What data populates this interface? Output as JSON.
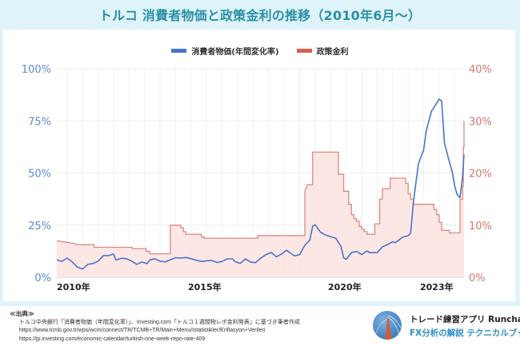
{
  "title": "トルコ 消費者物価と政策金利の推移（2010年6月〜）",
  "colors": {
    "cpi_line": "#4a74c9",
    "rate_line": "#d98a80",
    "rate_fill": "#fbe3df",
    "left_axis_text": "#5b8ad1",
    "right_axis_text": "#d9776b",
    "title": "#2a8fa8",
    "background": "#dff4fa"
  },
  "chart_data": {
    "type": "line",
    "title": "トルコ 消費者物価と政策金利の推移（2010年6月〜）",
    "legend": {
      "position": "top-center",
      "entries": [
        {
          "label": "消費者物価(年間変化率)",
          "color": "#4a74c9",
          "axis": "left"
        },
        {
          "label": "政策金利",
          "color": "#d98a80",
          "axis": "right"
        }
      ]
    },
    "x_axis": {
      "range": [
        2010.42,
        2023.55
      ],
      "tick_labels": [
        {
          "value": 2010.42,
          "label": "2010年"
        },
        {
          "value": 2015,
          "label": "2015年"
        },
        {
          "value": 2020,
          "label": "2020年"
        },
        {
          "value": 2023,
          "label": "2023年"
        }
      ]
    },
    "y_left": {
      "range": [
        0,
        100
      ],
      "ticks": [
        0,
        25,
        50,
        75,
        100
      ],
      "tick_labels": [
        "0%",
        "25%",
        "50%",
        "75%",
        "100%"
      ]
    },
    "y_right": {
      "range": [
        0,
        40
      ],
      "ticks": [
        0,
        10,
        20,
        30,
        40
      ],
      "tick_labels": [
        "0%",
        "10%",
        "20%",
        "30%",
        "40%"
      ]
    },
    "grid": true,
    "series": [
      {
        "name": "消費者物価(年間変化率)",
        "axis": "left",
        "style": "line",
        "points": [
          [
            2010.42,
            8.4
          ],
          [
            2010.58,
            7.6
          ],
          [
            2010.75,
            9.2
          ],
          [
            2010.92,
            7.3
          ],
          [
            2011.08,
            4.9
          ],
          [
            2011.25,
            4.0
          ],
          [
            2011.42,
            6.2
          ],
          [
            2011.58,
            6.6
          ],
          [
            2011.75,
            7.7
          ],
          [
            2011.92,
            10.4
          ],
          [
            2012.08,
            10.4
          ],
          [
            2012.25,
            11.1
          ],
          [
            2012.33,
            8.3
          ],
          [
            2012.5,
            9.1
          ],
          [
            2012.67,
            8.9
          ],
          [
            2012.83,
            7.8
          ],
          [
            2013.0,
            6.2
          ],
          [
            2013.17,
            7.3
          ],
          [
            2013.33,
            6.5
          ],
          [
            2013.42,
            8.3
          ],
          [
            2013.58,
            8.9
          ],
          [
            2013.75,
            7.7
          ],
          [
            2013.92,
            7.4
          ],
          [
            2014.08,
            8.4
          ],
          [
            2014.25,
            9.4
          ],
          [
            2014.42,
            9.2
          ],
          [
            2014.58,
            9.5
          ],
          [
            2014.75,
            8.9
          ],
          [
            2014.92,
            8.2
          ],
          [
            2015.08,
            7.6
          ],
          [
            2015.25,
            7.9
          ],
          [
            2015.42,
            8.1
          ],
          [
            2015.58,
            7.1
          ],
          [
            2015.75,
            7.6
          ],
          [
            2015.92,
            8.8
          ],
          [
            2016.08,
            8.8
          ],
          [
            2016.17,
            7.5
          ],
          [
            2016.33,
            6.6
          ],
          [
            2016.5,
            8.8
          ],
          [
            2016.67,
            7.3
          ],
          [
            2016.83,
            7.0
          ],
          [
            2017.0,
            9.2
          ],
          [
            2017.17,
            10.9
          ],
          [
            2017.33,
            11.9
          ],
          [
            2017.5,
            9.8
          ],
          [
            2017.67,
            11.2
          ],
          [
            2017.83,
            13.0
          ],
          [
            2017.92,
            11.9
          ],
          [
            2018.08,
            10.3
          ],
          [
            2018.25,
            10.8
          ],
          [
            2018.42,
            15.4
          ],
          [
            2018.58,
            17.9
          ],
          [
            2018.67,
            24.5
          ],
          [
            2018.75,
            25.2
          ],
          [
            2018.92,
            21.6
          ],
          [
            2019.08,
            20.3
          ],
          [
            2019.25,
            19.5
          ],
          [
            2019.42,
            18.7
          ],
          [
            2019.5,
            16.7
          ],
          [
            2019.58,
            15.0
          ],
          [
            2019.67,
            9.3
          ],
          [
            2019.75,
            8.6
          ],
          [
            2019.92,
            11.8
          ],
          [
            2020.08,
            12.4
          ],
          [
            2020.25,
            10.9
          ],
          [
            2020.42,
            12.6
          ],
          [
            2020.5,
            11.8
          ],
          [
            2020.58,
            11.8
          ],
          [
            2020.75,
            11.9
          ],
          [
            2020.92,
            14.6
          ],
          [
            2021.08,
            15.6
          ],
          [
            2021.25,
            17.1
          ],
          [
            2021.33,
            16.6
          ],
          [
            2021.42,
            17.5
          ],
          [
            2021.58,
            19.3
          ],
          [
            2021.75,
            19.9
          ],
          [
            2021.83,
            21.3
          ],
          [
            2021.92,
            36.1
          ],
          [
            2022.08,
            54.4
          ],
          [
            2022.25,
            61.1
          ],
          [
            2022.33,
            70.0
          ],
          [
            2022.5,
            79.6
          ],
          [
            2022.67,
            83.5
          ],
          [
            2022.75,
            85.5
          ],
          [
            2022.83,
            84.4
          ],
          [
            2022.92,
            64.3
          ],
          [
            2023.08,
            55.2
          ],
          [
            2023.17,
            50.5
          ],
          [
            2023.25,
            43.7
          ],
          [
            2023.33,
            39.6
          ],
          [
            2023.42,
            38.2
          ],
          [
            2023.5,
            47.8
          ],
          [
            2023.55,
            58.9
          ]
        ]
      },
      {
        "name": "政策金利",
        "axis": "right",
        "style": "step-area",
        "points": [
          [
            2010.42,
            7.0
          ],
          [
            2010.97,
            6.5
          ],
          [
            2011.08,
            6.25
          ],
          [
            2011.62,
            6.25
          ],
          [
            2011.62,
            5.75
          ],
          [
            2012.85,
            5.75
          ],
          [
            2012.85,
            5.5
          ],
          [
            2013.3,
            5.5
          ],
          [
            2013.3,
            5.0
          ],
          [
            2013.42,
            5.0
          ],
          [
            2013.42,
            4.5
          ],
          [
            2014.08,
            4.5
          ],
          [
            2014.08,
            10.0
          ],
          [
            2014.42,
            10.0
          ],
          [
            2014.42,
            9.5
          ],
          [
            2014.5,
            9.5
          ],
          [
            2014.5,
            8.75
          ],
          [
            2014.58,
            8.75
          ],
          [
            2014.58,
            8.25
          ],
          [
            2015.08,
            8.25
          ],
          [
            2015.08,
            7.75
          ],
          [
            2015.17,
            7.75
          ],
          [
            2015.17,
            7.5
          ],
          [
            2016.9,
            7.5
          ],
          [
            2016.9,
            8.0
          ],
          [
            2018.42,
            8.0
          ],
          [
            2018.42,
            16.5
          ],
          [
            2018.5,
            17.75
          ],
          [
            2018.67,
            17.75
          ],
          [
            2018.67,
            24.0
          ],
          [
            2019.5,
            24.0
          ],
          [
            2019.5,
            19.75
          ],
          [
            2019.67,
            19.75
          ],
          [
            2019.67,
            16.5
          ],
          [
            2019.83,
            16.5
          ],
          [
            2019.83,
            14.0
          ],
          [
            2019.92,
            14.0
          ],
          [
            2019.92,
            12.0
          ],
          [
            2020.0,
            12.0
          ],
          [
            2020.0,
            11.25
          ],
          [
            2020.08,
            11.25
          ],
          [
            2020.08,
            10.75
          ],
          [
            2020.17,
            10.75
          ],
          [
            2020.17,
            9.75
          ],
          [
            2020.25,
            9.75
          ],
          [
            2020.25,
            9.25
          ],
          [
            2020.33,
            9.25
          ],
          [
            2020.33,
            8.75
          ],
          [
            2020.42,
            8.75
          ],
          [
            2020.42,
            8.25
          ],
          [
            2020.67,
            8.25
          ],
          [
            2020.67,
            10.25
          ],
          [
            2020.83,
            10.25
          ],
          [
            2020.83,
            15.0
          ],
          [
            2020.92,
            15.0
          ],
          [
            2020.92,
            17.0
          ],
          [
            2021.17,
            17.0
          ],
          [
            2021.17,
            19.0
          ],
          [
            2021.67,
            19.0
          ],
          [
            2021.67,
            18.0
          ],
          [
            2021.75,
            18.0
          ],
          [
            2021.75,
            16.0
          ],
          [
            2021.83,
            16.0
          ],
          [
            2021.83,
            15.0
          ],
          [
            2021.92,
            15.0
          ],
          [
            2021.92,
            14.0
          ],
          [
            2022.58,
            14.0
          ],
          [
            2022.58,
            13.0
          ],
          [
            2022.67,
            13.0
          ],
          [
            2022.67,
            12.0
          ],
          [
            2022.75,
            12.0
          ],
          [
            2022.75,
            10.5
          ],
          [
            2022.83,
            10.5
          ],
          [
            2022.83,
            9.0
          ],
          [
            2023.08,
            9.0
          ],
          [
            2023.08,
            8.5
          ],
          [
            2023.42,
            8.5
          ],
          [
            2023.42,
            15.0
          ],
          [
            2023.5,
            15.0
          ],
          [
            2023.5,
            17.5
          ],
          [
            2023.53,
            17.5
          ],
          [
            2023.53,
            25.0
          ],
          [
            2023.55,
            25.0
          ],
          [
            2023.55,
            30.0
          ]
        ]
      }
    ]
  },
  "source": {
    "heading": "≪出典≫",
    "lines": [
      "トルコ中央銀行「消費者物価（年間変化率）」、Investing.com「トルコ１週間物レポ金利発表」に基づき筆者作成",
      "https://www.tcmb.gov.tr/wps/wcm/connect/TR/TCMB+TR/Main+Menu/Istatistikler/Enflasyon+Verileri",
      "https://jp.investing.com/economic-calendar/turkish-one-week-repo-rate-409"
    ]
  },
  "brand": {
    "line1": "トレード練習アプリ Runcha",
    "line2": "FX分析の解説 テクニカルブック"
  }
}
